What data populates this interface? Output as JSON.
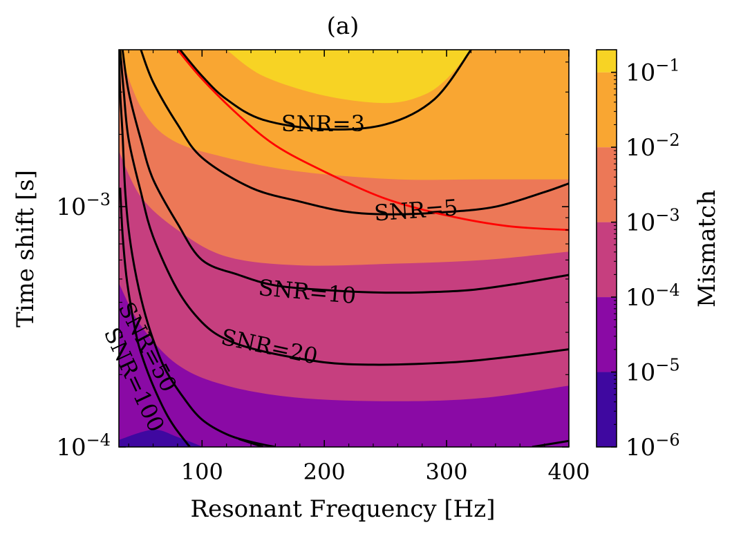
{
  "chart_data": {
    "type": "heatmap",
    "title": "(a)",
    "xlabel": "Resonant Frequency [Hz]",
    "ylabel": "Time shift [s]",
    "xlim": [
      32,
      400
    ],
    "ylim": [
      0.0001,
      0.0045
    ],
    "yscale": "log",
    "x_ticks": [
      100,
      200,
      300,
      400
    ],
    "x_tick_labels": [
      "100",
      "200",
      "300",
      "400"
    ],
    "y_ticks": [
      0.0001,
      0.001
    ],
    "y_tick_labels": [
      {
        "base": "10",
        "exp": "−4"
      },
      {
        "base": "10",
        "exp": "−3"
      }
    ],
    "colorbar": {
      "label": "Mismatch",
      "scale": "log",
      "levels": [
        1e-06,
        1e-05,
        0.0001,
        0.001,
        0.01,
        0.1,
        0.2
      ],
      "colors": [
        "#3f08a0",
        "#8a0aa5",
        "#c63f7f",
        "#ec7857",
        "#f9a632",
        "#f7d324"
      ],
      "tick_labels": [
        {
          "base": "10",
          "exp": "−6"
        },
        {
          "base": "10",
          "exp": "−5"
        },
        {
          "base": "10",
          "exp": "−4"
        },
        {
          "base": "10",
          "exp": "−3"
        },
        {
          "base": "10",
          "exp": "−2"
        },
        {
          "base": "10",
          "exp": "−1"
        }
      ]
    },
    "mismatch_boundaries": [
      {
        "level": 1e-05,
        "points": [
          [
            32,
            0.000107
          ],
          [
            60,
            0.000118
          ],
          [
            80,
            0.00011
          ],
          [
            101,
            0.0001
          ]
        ]
      },
      {
        "level": 0.0001,
        "points": [
          [
            32,
            0.00048
          ],
          [
            50,
            0.00032
          ],
          [
            80,
            0.00022
          ],
          [
            120,
            0.00018
          ],
          [
            180,
            0.00016
          ],
          [
            260,
            0.000155
          ],
          [
            330,
            0.00016
          ],
          [
            400,
            0.00018
          ]
        ]
      },
      {
        "level": 0.001,
        "points": [
          [
            32,
            0.0017
          ],
          [
            50,
            0.0011
          ],
          [
            80,
            0.0008
          ],
          [
            120,
            0.00062
          ],
          [
            180,
            0.00057
          ],
          [
            260,
            0.00058
          ],
          [
            330,
            0.0006
          ],
          [
            400,
            0.00065
          ]
        ]
      },
      {
        "level": 0.01,
        "points": [
          [
            32,
            0.0045
          ],
          [
            50,
            0.0026
          ],
          [
            75,
            0.0019
          ],
          [
            120,
            0.0016
          ],
          [
            180,
            0.0014
          ],
          [
            260,
            0.0013
          ],
          [
            330,
            0.0013
          ],
          [
            400,
            0.0013
          ]
        ]
      },
      {
        "level": 0.1,
        "points": [
          [
            120,
            0.0045
          ],
          [
            150,
            0.0035
          ],
          [
            200,
            0.0029
          ],
          [
            250,
            0.0027
          ],
          [
            280,
            0.0029
          ],
          [
            300,
            0.0034
          ],
          [
            320,
            0.0045
          ]
        ]
      }
    ],
    "snr_contours": [
      {
        "label": "SNR=3",
        "label_at": [
          199,
          0.0022
        ],
        "label_angle": 0,
        "points": [
          [
            82,
            0.0045
          ],
          [
            100,
            0.0035
          ],
          [
            120,
            0.0028
          ],
          [
            150,
            0.0023
          ],
          [
            200,
            0.0021
          ],
          [
            250,
            0.0022
          ],
          [
            290,
            0.0028
          ],
          [
            320,
            0.0045
          ]
        ]
      },
      {
        "label": "SNR=5",
        "label_at": [
          275,
          0.00096
        ],
        "label_angle": -4,
        "points": [
          [
            50,
            0.0045
          ],
          [
            60,
            0.0033
          ],
          [
            80,
            0.0022
          ],
          [
            100,
            0.0016
          ],
          [
            140,
            0.0012
          ],
          [
            180,
            0.00105
          ],
          [
            220,
            0.00095
          ],
          [
            260,
            0.00093
          ],
          [
            300,
            0.00095
          ],
          [
            340,
            0.001
          ],
          [
            380,
            0.00115
          ],
          [
            400,
            0.00125
          ]
        ]
      },
      {
        "label": "SNR=10",
        "label_at": [
          186,
          0.00044
        ],
        "label_angle": 5,
        "points": [
          [
            35,
            0.0045
          ],
          [
            40,
            0.003
          ],
          [
            50,
            0.0019
          ],
          [
            60,
            0.0013
          ],
          [
            80,
            0.00085
          ],
          [
            100,
            0.0006
          ],
          [
            130,
            0.00052
          ],
          [
            160,
            0.00047
          ],
          [
            200,
            0.00045
          ],
          [
            240,
            0.00044
          ],
          [
            280,
            0.00044
          ],
          [
            320,
            0.00045
          ],
          [
            360,
            0.00048
          ],
          [
            400,
            0.00052
          ]
        ]
      },
      {
        "label": "SNR=20",
        "label_at": [
          155,
          0.00026
        ],
        "label_angle": 12,
        "points": [
          [
            33,
            0.0045
          ],
          [
            36,
            0.003
          ],
          [
            40,
            0.0019
          ],
          [
            50,
            0.00115
          ],
          [
            60,
            0.00075
          ],
          [
            80,
            0.00045
          ],
          [
            100,
            0.00033
          ],
          [
            120,
            0.00028
          ],
          [
            150,
            0.00025
          ],
          [
            200,
            0.000225
          ],
          [
            240,
            0.00022
          ],
          [
            280,
            0.000222
          ],
          [
            320,
            0.000228
          ],
          [
            360,
            0.00024
          ],
          [
            400,
            0.000255
          ]
        ]
      },
      {
        "label": "SNR=50",
        "label_at": [
          55,
          0.00026
        ],
        "label_angle": 62,
        "points": [
          [
            32,
            0.0045
          ],
          [
            33,
            0.003
          ],
          [
            35,
            0.002
          ],
          [
            37,
            0.0012
          ],
          [
            40,
            0.0008
          ],
          [
            45,
            0.00055
          ],
          [
            52,
            0.00038
          ],
          [
            60,
            0.00028
          ],
          [
            70,
            0.00021
          ],
          [
            85,
            0.00016
          ],
          [
            100,
            0.00013
          ],
          [
            120,
            0.000113
          ],
          [
            140,
            0.000105
          ],
          [
            160,
            0.0001
          ]
        ]
      },
      {
        "label": "SNR=100",
        "label_at": [
          44,
          0.00019
        ],
        "label_angle": 65,
        "points": [
          [
            33,
            0.0012
          ],
          [
            35,
            0.00077
          ],
          [
            38,
            0.00052
          ],
          [
            42,
            0.00038
          ],
          [
            47,
            0.00028
          ],
          [
            52,
            0.00023
          ],
          [
            60,
            0.00018
          ],
          [
            70,
            0.00014
          ],
          [
            78,
            0.00012
          ],
          [
            90,
            0.0001
          ]
        ]
      },
      {
        "label": "",
        "label_at": null,
        "label_angle": 0,
        "points": [
          [
            130,
            0.000108
          ],
          [
            150,
            0.0001
          ]
        ]
      },
      {
        "label": "",
        "label_at": null,
        "label_angle": 0,
        "points": [
          [
            370,
            0.0001
          ],
          [
            400,
            0.000106
          ]
        ]
      }
    ],
    "red_curve": {
      "color": "#ff0000",
      "points": [
        [
          80,
          0.0045
        ],
        [
          100,
          0.0034
        ],
        [
          130,
          0.0024
        ],
        [
          160,
          0.0018
        ],
        [
          200,
          0.0014
        ],
        [
          250,
          0.00108
        ],
        [
          300,
          0.00092
        ],
        [
          350,
          0.00083
        ],
        [
          400,
          0.0008
        ]
      ]
    }
  }
}
